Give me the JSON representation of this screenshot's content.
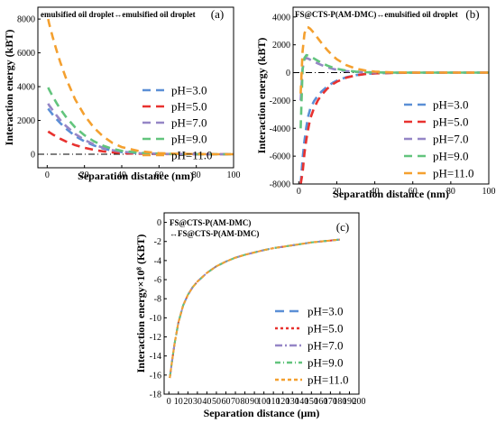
{
  "chart_data": [
    {
      "type": "line",
      "panel_label": "(a)",
      "title": "emulsified oil droplet↔emulsified oil droplet",
      "xlabel": "Separation distance (nm)",
      "ylabel": "Interaction energy (kBT)",
      "xlim": [
        -5,
        100
      ],
      "ylim": [
        -800,
        8700
      ],
      "xticks": [
        0,
        20,
        40,
        60,
        80,
        100
      ],
      "yticks": [
        0,
        2000,
        4000,
        6000,
        8000
      ],
      "reference_line_y": 0,
      "legend_position": "right",
      "x": [
        0.5,
        1,
        2,
        3,
        5,
        7,
        10,
        15,
        20,
        25,
        30,
        35,
        40,
        50,
        60,
        70,
        80,
        90,
        100
      ],
      "series": [
        {
          "name": "pH=3.0",
          "color": "#5b8fd6",
          "values": [
            2700,
            2620,
            2480,
            2340,
            2080,
            1840,
            1520,
            1080,
            760,
            520,
            340,
            210,
            130,
            50,
            20,
            8,
            3,
            1,
            0
          ]
        },
        {
          "name": "pH=5.0",
          "color": "#e8322f",
          "values": [
            1350,
            1310,
            1240,
            1170,
            1040,
            920,
            760,
            540,
            380,
            260,
            170,
            105,
            65,
            25,
            10,
            4,
            1,
            0,
            0
          ]
        },
        {
          "name": "pH=7.0",
          "color": "#9586c6",
          "values": [
            3000,
            2900,
            2750,
            2600,
            2300,
            2030,
            1680,
            1200,
            850,
            580,
            380,
            240,
            150,
            60,
            24,
            9,
            3,
            1,
            0
          ]
        },
        {
          "name": "pH=9.0",
          "color": "#62c47d",
          "values": [
            3950,
            3830,
            3620,
            3420,
            3030,
            2680,
            2220,
            1590,
            1120,
            770,
            510,
            320,
            200,
            80,
            32,
            12,
            4,
            1,
            0
          ]
        },
        {
          "name": "pH=11.0",
          "color": "#f4a02f",
          "values": [
            8000,
            7750,
            7330,
            6920,
            6150,
            5450,
            4520,
            3250,
            2300,
            1580,
            1050,
            670,
            420,
            170,
            65,
            25,
            9,
            3,
            1
          ]
        }
      ]
    },
    {
      "type": "line",
      "panel_label": "(b)",
      "title": "FS@CTS-P(AM-DMC)↔emulsified oil droplet",
      "xlabel": "Separation distance (nm)",
      "ylabel": "Interaction energy (kBT)",
      "xlim": [
        -3,
        100
      ],
      "ylim": [
        -8000,
        4700
      ],
      "xticks": [
        0,
        20,
        40,
        60,
        80,
        100
      ],
      "yticks": [
        -8000,
        -6000,
        -4000,
        -2000,
        0,
        2000,
        4000
      ],
      "reference_line_y": 0,
      "legend_position": "right",
      "x": [
        1,
        2,
        3,
        4,
        5,
        6,
        8,
        10,
        12,
        15,
        18,
        20,
        25,
        30,
        35,
        40,
        50,
        60,
        80,
        100
      ],
      "series": [
        {
          "name": "pH=3.0",
          "color": "#5b8fd6",
          "values": [
            -8000,
            -6200,
            -4900,
            -3900,
            -3100,
            -2600,
            -2050,
            -1650,
            -1350,
            -1000,
            -720,
            -580,
            -330,
            -180,
            -95,
            -50,
            -15,
            -4,
            0,
            0
          ]
        },
        {
          "name": "pH=5.0",
          "color": "#e8322f",
          "values": [
            -8000,
            -7200,
            -5800,
            -4800,
            -4000,
            -3300,
            -2550,
            -2000,
            -1600,
            -1150,
            -820,
            -650,
            -360,
            -195,
            -100,
            -52,
            -15,
            -4,
            0,
            0
          ]
        },
        {
          "name": "pH=7.0",
          "color": "#9586c6",
          "values": [
            -2000,
            300,
            950,
            1050,
            1000,
            930,
            800,
            660,
            540,
            390,
            270,
            210,
            110,
            55,
            27,
            13,
            3,
            1,
            0,
            0
          ]
        },
        {
          "name": "pH=9.0",
          "color": "#62c47d",
          "values": [
            -4000,
            200,
            1050,
            1250,
            1230,
            1160,
            1010,
            850,
            700,
            510,
            360,
            280,
            145,
            72,
            35,
            17,
            4,
            1,
            0,
            0
          ]
        },
        {
          "name": "pH=11.0",
          "color": "#f4a02f",
          "values": [
            -1500,
            1500,
            2800,
            3250,
            3250,
            3150,
            2850,
            2480,
            2120,
            1620,
            1200,
            960,
            540,
            290,
            150,
            75,
            18,
            4,
            0,
            0
          ]
        }
      ]
    },
    {
      "type": "line",
      "panel_label": "(c)",
      "title": "FS@CTS-P(AM-DMC) ↔FS@CTS-P(AM-DMC)",
      "title_lines": [
        "FS@CTS-P(AM-DMC)",
        "↔FS@CTS-P(AM-DMC)"
      ],
      "xlabel": "Separation distance (μm)",
      "ylabel": "Interaction energy×10⁸ (KBT)",
      "xlim": [
        -5,
        200
      ],
      "ylim": [
        -18,
        1
      ],
      "xticks": [
        0,
        10,
        20,
        30,
        40,
        50,
        60,
        70,
        80,
        90,
        100,
        110,
        120,
        130,
        140,
        150,
        160,
        170,
        180,
        190,
        200
      ],
      "yticks": [
        -18,
        -16,
        -14,
        -12,
        -10,
        -8,
        -6,
        -4,
        -2,
        0
      ],
      "legend_position": "right",
      "x": [
        1,
        3,
        6,
        10,
        15,
        20,
        25,
        30,
        40,
        50,
        60,
        70,
        80,
        90,
        100,
        110,
        120,
        130,
        140,
        150,
        160,
        170,
        180
      ],
      "series": [
        {
          "name": "pH=3.0",
          "color": "#5b8fd6",
          "values": [
            -16.3,
            -14.8,
            -12.7,
            -10.5,
            -8.7,
            -7.6,
            -6.8,
            -6.2,
            -5.3,
            -4.6,
            -4.1,
            -3.7,
            -3.4,
            -3.15,
            -2.9,
            -2.7,
            -2.55,
            -2.4,
            -2.25,
            -2.1,
            -2.0,
            -1.9,
            -1.8
          ]
        },
        {
          "name": "pH=5.0",
          "color": "#e8322f",
          "values": [
            -16.3,
            -14.8,
            -12.7,
            -10.5,
            -8.7,
            -7.6,
            -6.8,
            -6.2,
            -5.3,
            -4.6,
            -4.1,
            -3.7,
            -3.4,
            -3.15,
            -2.9,
            -2.7,
            -2.55,
            -2.4,
            -2.25,
            -2.1,
            -2.0,
            -1.9,
            -1.8
          ]
        },
        {
          "name": "pH=7.0",
          "color": "#9586c6",
          "values": [
            -16.3,
            -14.8,
            -12.7,
            -10.5,
            -8.7,
            -7.6,
            -6.8,
            -6.2,
            -5.3,
            -4.6,
            -4.1,
            -3.7,
            -3.4,
            -3.15,
            -2.9,
            -2.7,
            -2.55,
            -2.4,
            -2.25,
            -2.1,
            -2.0,
            -1.9,
            -1.8
          ]
        },
        {
          "name": "pH=9.0",
          "color": "#62c47d",
          "values": [
            -16.3,
            -14.8,
            -12.7,
            -10.5,
            -8.7,
            -7.6,
            -6.8,
            -6.2,
            -5.3,
            -4.6,
            -4.1,
            -3.7,
            -3.4,
            -3.15,
            -2.9,
            -2.7,
            -2.55,
            -2.4,
            -2.25,
            -2.1,
            -2.0,
            -1.9,
            -1.8
          ]
        },
        {
          "name": "pH=11.0",
          "color": "#f4a02f",
          "values": [
            -16.3,
            -14.8,
            -12.7,
            -10.5,
            -8.7,
            -7.6,
            -6.8,
            -6.2,
            -5.3,
            -4.6,
            -4.1,
            -3.7,
            -3.4,
            -3.15,
            -2.9,
            -2.7,
            -2.55,
            -2.4,
            -2.25,
            -2.1,
            -2.0,
            -1.9,
            -1.8
          ]
        }
      ]
    }
  ]
}
